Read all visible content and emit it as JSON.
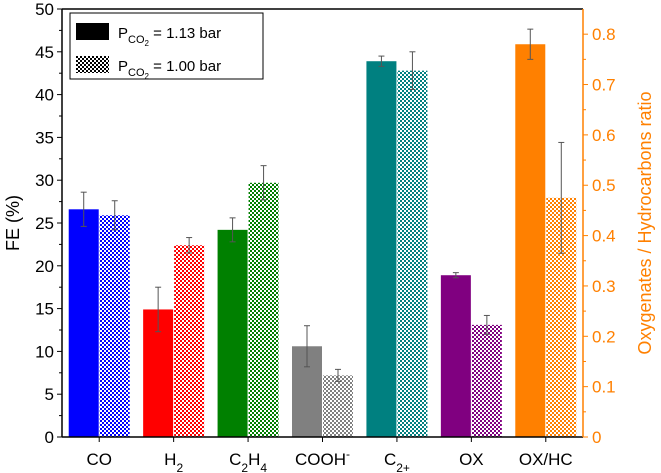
{
  "chart_data": {
    "type": "bar",
    "categories": [
      {
        "id": "CO",
        "main": "CO",
        "sub": "",
        "sup": "",
        "axis": "left"
      },
      {
        "id": "H2",
        "main": "H",
        "sub": "2",
        "sup": "",
        "axis": "left"
      },
      {
        "id": "C2H4",
        "main": "C",
        "sub": "2",
        "main2": "H",
        "sub2": "4",
        "sup": "",
        "axis": "left"
      },
      {
        "id": "COOH-",
        "main": "COOH",
        "sub": "",
        "sup": "-",
        "axis": "left"
      },
      {
        "id": "C2+",
        "main": "C",
        "sub": "2+",
        "sup": "",
        "axis": "left"
      },
      {
        "id": "OX",
        "main": "OX",
        "sub": "",
        "sup": "",
        "axis": "left"
      },
      {
        "id": "OX/HC",
        "main": "OX/HC",
        "sub": "",
        "sup": "",
        "axis": "right"
      }
    ],
    "series": [
      {
        "name": "P_CO2 = 1.13 bar",
        "pattern": "solid",
        "values": [
          26.6,
          14.9,
          24.2,
          10.6,
          43.9,
          18.9,
          0.78
        ],
        "errors": [
          2.0,
          2.6,
          1.4,
          2.4,
          0.6,
          0.3,
          0.03
        ]
      },
      {
        "name": "P_CO2 = 1.00 bar",
        "pattern": "checkered",
        "values": [
          25.9,
          22.4,
          29.7,
          7.2,
          42.8,
          13.1,
          0.475
        ],
        "errors": [
          1.7,
          0.9,
          2.0,
          0.7,
          2.2,
          1.1,
          0.11
        ]
      }
    ],
    "category_colors": [
      "#0000ff",
      "#ff0000",
      "#008000",
      "#808080",
      "#008080",
      "#800080",
      "#ff8000"
    ],
    "ylabel": "FE (%)",
    "ylim": [
      0,
      50
    ],
    "yticks": [
      "0",
      "5",
      "10",
      "15",
      "20",
      "25",
      "30",
      "35",
      "40",
      "45",
      "50"
    ],
    "y2label": "Oxygenates / Hydrocarbons ratio",
    "y2lim": [
      0,
      0.85
    ],
    "y2ticks": [
      "0",
      "0.1",
      "0.2",
      "0.3",
      "0.4",
      "0.5",
      "0.6",
      "0.7",
      "0.8"
    ],
    "y2_color": "#ff8000",
    "legend": {
      "placement": "top-left",
      "entries": [
        {
          "prefix": "P",
          "sub": "CO",
          "subsub": "2",
          "suffix": " = 1.13 bar",
          "pattern": "solid"
        },
        {
          "prefix": "P",
          "sub": "CO",
          "subsub": "2",
          "suffix": " = 1.00 bar",
          "pattern": "checkered"
        }
      ]
    },
    "grid": false
  }
}
